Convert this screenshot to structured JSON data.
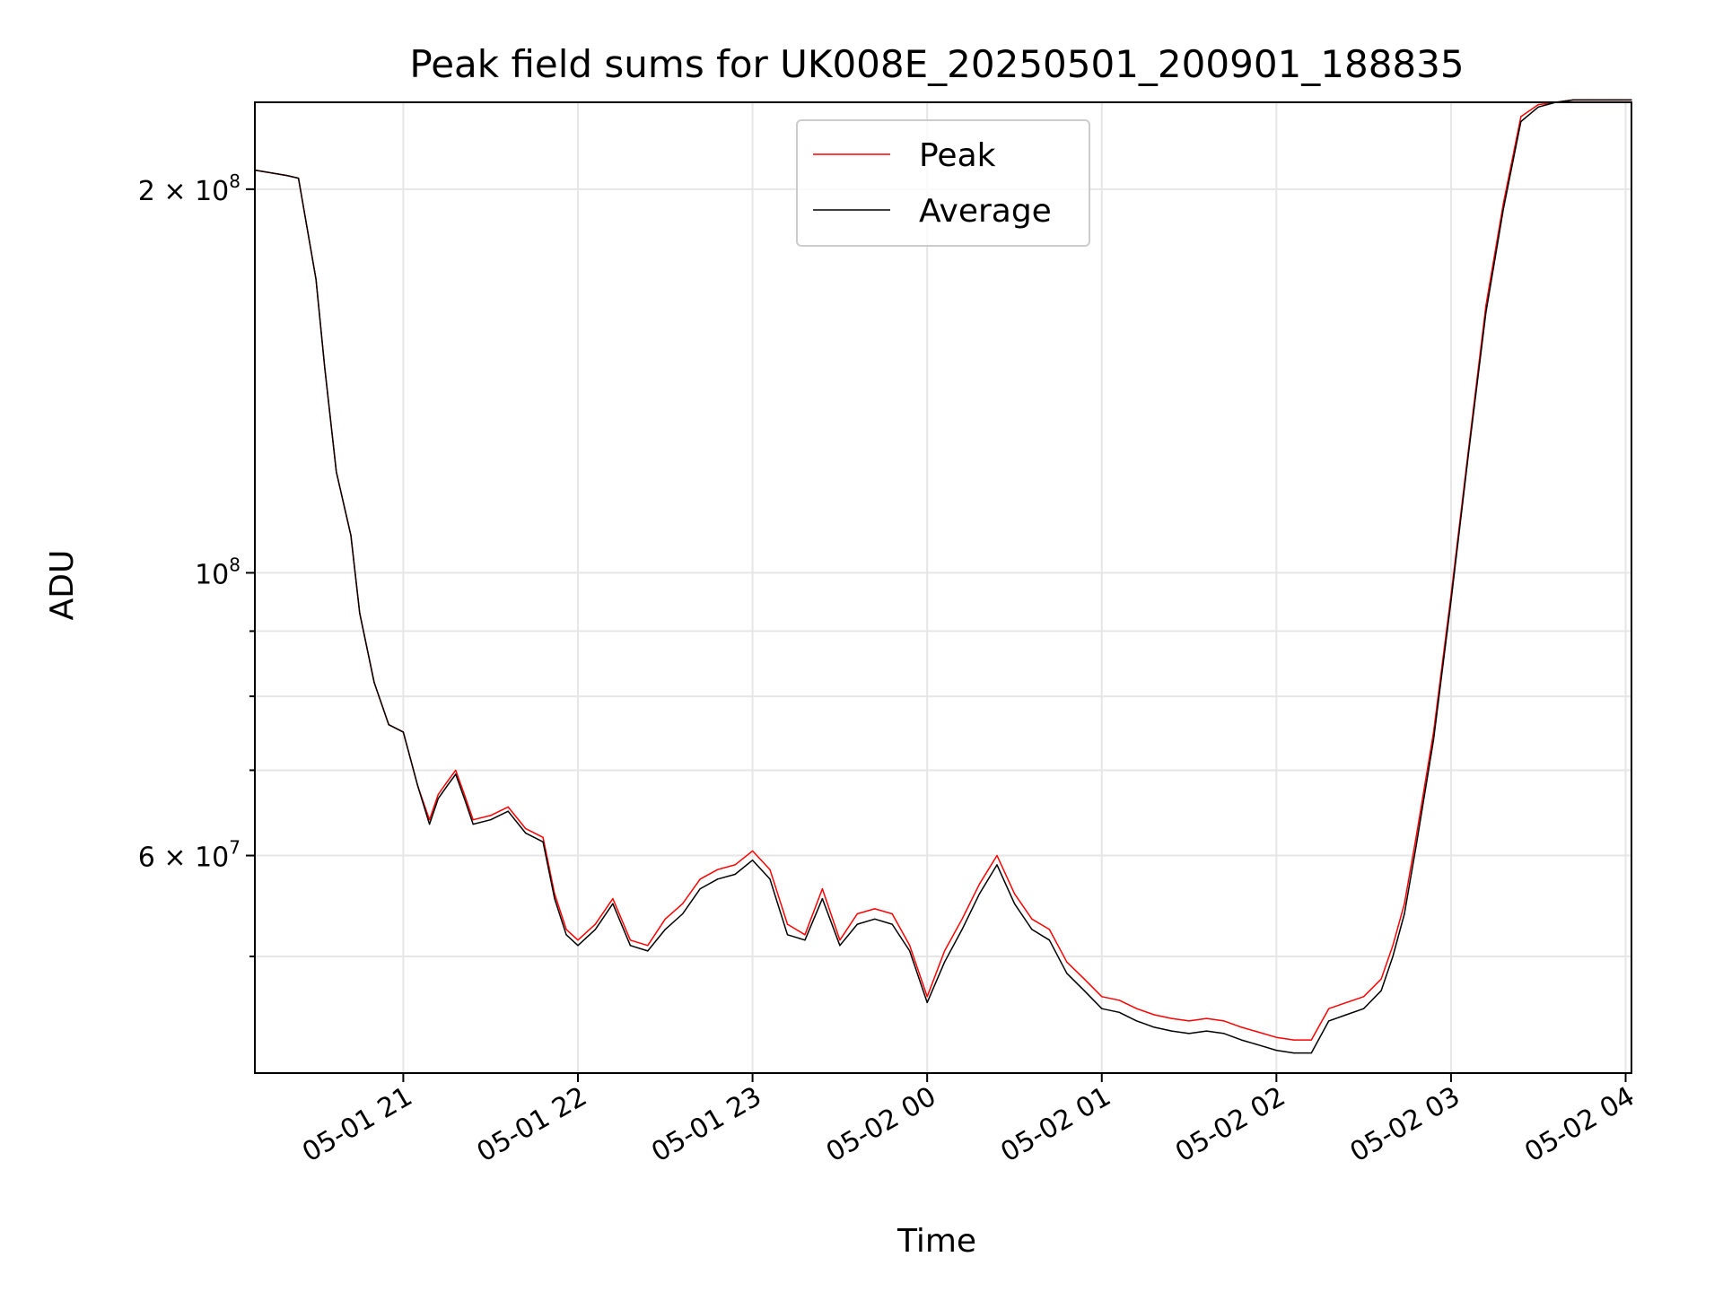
{
  "chart_data": {
    "type": "line",
    "title": "Peak field sums for UK008E_20250501_200901_188835",
    "xlabel": "Time",
    "ylabel": "ADU",
    "yscale": "log",
    "xlim": [
      "2025-05-01 20:09",
      "2025-05-02 04:02"
    ],
    "ylim": [
      40500000,
      234000000
    ],
    "grid": true,
    "legend_position": "top-center",
    "x_ticks": [
      {
        "time": "2025-05-01 21:00",
        "label": "05-01 21"
      },
      {
        "time": "2025-05-01 22:00",
        "label": "05-01 22"
      },
      {
        "time": "2025-05-01 23:00",
        "label": "05-01 23"
      },
      {
        "time": "2025-05-02 00:00",
        "label": "05-02 00"
      },
      {
        "time": "2025-05-02 01:00",
        "label": "05-02 01"
      },
      {
        "time": "2025-05-02 02:00",
        "label": "05-02 02"
      },
      {
        "time": "2025-05-02 03:00",
        "label": "05-02 03"
      },
      {
        "time": "2025-05-02 04:00",
        "label": "05-02 04"
      }
    ],
    "y_major_ticks": [
      {
        "value": 60000000,
        "base": "6 × 10",
        "exp": "7"
      },
      {
        "value": 100000000,
        "base": "10",
        "exp": "8"
      },
      {
        "value": 200000000,
        "base": "2 × 10",
        "exp": "8"
      }
    ],
    "y_minor_ticks": [
      50000000,
      70000000,
      80000000,
      90000000
    ],
    "series": [
      {
        "name": "Peak",
        "color": "#ff0000",
        "x": [
          "2025-05-01 20:09",
          "2025-05-01 20:20",
          "2025-05-01 20:24",
          "2025-05-01 20:30",
          "2025-05-01 20:33",
          "2025-05-01 20:37",
          "2025-05-01 20:42",
          "2025-05-01 20:45",
          "2025-05-01 20:50",
          "2025-05-01 20:55",
          "2025-05-01 21:00",
          "2025-05-01 21:05",
          "2025-05-01 21:09",
          "2025-05-01 21:12",
          "2025-05-01 21:15",
          "2025-05-01 21:18",
          "2025-05-01 21:21",
          "2025-05-01 21:24",
          "2025-05-01 21:30",
          "2025-05-01 21:36",
          "2025-05-01 21:42",
          "2025-05-01 21:48",
          "2025-05-01 21:52",
          "2025-05-01 21:56",
          "2025-05-01 22:00",
          "2025-05-01 22:06",
          "2025-05-01 22:12",
          "2025-05-01 22:18",
          "2025-05-01 22:24",
          "2025-05-01 22:30",
          "2025-05-01 22:36",
          "2025-05-01 22:42",
          "2025-05-01 22:48",
          "2025-05-01 22:54",
          "2025-05-01 23:00",
          "2025-05-01 23:06",
          "2025-05-01 23:12",
          "2025-05-01 23:18",
          "2025-05-01 23:24",
          "2025-05-01 23:30",
          "2025-05-01 23:36",
          "2025-05-01 23:42",
          "2025-05-01 23:48",
          "2025-05-01 23:54",
          "2025-05-02 00:00",
          "2025-05-02 00:06",
          "2025-05-02 00:12",
          "2025-05-02 00:18",
          "2025-05-02 00:24",
          "2025-05-02 00:30",
          "2025-05-02 00:36",
          "2025-05-02 00:42",
          "2025-05-02 00:48",
          "2025-05-02 00:54",
          "2025-05-02 01:00",
          "2025-05-02 01:06",
          "2025-05-02 01:12",
          "2025-05-02 01:18",
          "2025-05-02 01:24",
          "2025-05-02 01:30",
          "2025-05-02 01:36",
          "2025-05-02 01:42",
          "2025-05-02 01:48",
          "2025-05-02 01:54",
          "2025-05-02 02:00",
          "2025-05-02 02:06",
          "2025-05-02 02:12",
          "2025-05-02 02:18",
          "2025-05-02 02:24",
          "2025-05-02 02:30",
          "2025-05-02 02:36",
          "2025-05-02 02:40",
          "2025-05-02 02:44",
          "2025-05-02 02:48",
          "2025-05-02 02:54",
          "2025-05-02 03:00",
          "2025-05-02 03:06",
          "2025-05-02 03:12",
          "2025-05-02 03:18",
          "2025-05-02 03:24",
          "2025-05-02 03:30",
          "2025-05-02 03:36",
          "2025-05-02 03:42",
          "2025-05-02 03:48",
          "2025-05-02 03:54",
          "2025-05-02 03:58",
          "2025-05-02 04:02"
        ],
        "y": [
          207000000,
          205000000,
          204000000,
          170000000,
          145000000,
          120000000,
          107000000,
          93000000,
          82000000,
          76000000,
          75000000,
          68000000,
          64000000,
          67000000,
          68500000,
          70000000,
          67000000,
          64000000,
          64500000,
          65500000,
          63000000,
          62000000,
          56000000,
          52500000,
          51500000,
          53000000,
          55500000,
          51500000,
          51000000,
          53500000,
          55000000,
          57500000,
          58500000,
          59000000,
          60500000,
          58500000,
          53000000,
          52000000,
          56500000,
          51500000,
          54000000,
          54500000,
          54000000,
          51000000,
          46500000,
          50500000,
          53500000,
          57000000,
          60000000,
          56000000,
          53500000,
          52500000,
          49500000,
          48000000,
          46500000,
          46200000,
          45500000,
          45000000,
          44700000,
          44500000,
          44700000,
          44500000,
          44000000,
          43600000,
          43200000,
          43000000,
          43000000,
          45500000,
          46000000,
          46500000,
          48000000,
          51000000,
          55000000,
          62000000,
          75000000,
          96000000,
          125000000,
          162000000,
          195000000,
          228000000,
          233000000,
          234000000,
          235000000,
          235000000,
          235000000,
          235000000,
          235000000
        ]
      },
      {
        "name": "Average",
        "color": "#000000",
        "x": [
          "2025-05-01 20:09",
          "2025-05-01 20:20",
          "2025-05-01 20:24",
          "2025-05-01 20:30",
          "2025-05-01 20:33",
          "2025-05-01 20:37",
          "2025-05-01 20:42",
          "2025-05-01 20:45",
          "2025-05-01 20:50",
          "2025-05-01 20:55",
          "2025-05-01 21:00",
          "2025-05-01 21:05",
          "2025-05-01 21:09",
          "2025-05-01 21:12",
          "2025-05-01 21:15",
          "2025-05-01 21:18",
          "2025-05-01 21:21",
          "2025-05-01 21:24",
          "2025-05-01 21:30",
          "2025-05-01 21:36",
          "2025-05-01 21:42",
          "2025-05-01 21:48",
          "2025-05-01 21:52",
          "2025-05-01 21:56",
          "2025-05-01 22:00",
          "2025-05-01 22:06",
          "2025-05-01 22:12",
          "2025-05-01 22:18",
          "2025-05-01 22:24",
          "2025-05-01 22:30",
          "2025-05-01 22:36",
          "2025-05-01 22:42",
          "2025-05-01 22:48",
          "2025-05-01 22:54",
          "2025-05-01 23:00",
          "2025-05-01 23:06",
          "2025-05-01 23:12",
          "2025-05-01 23:18",
          "2025-05-01 23:24",
          "2025-05-01 23:30",
          "2025-05-01 23:36",
          "2025-05-01 23:42",
          "2025-05-01 23:48",
          "2025-05-01 23:54",
          "2025-05-02 00:00",
          "2025-05-02 00:06",
          "2025-05-02 00:12",
          "2025-05-02 00:18",
          "2025-05-02 00:24",
          "2025-05-02 00:30",
          "2025-05-02 00:36",
          "2025-05-02 00:42",
          "2025-05-02 00:48",
          "2025-05-02 00:54",
          "2025-05-02 01:00",
          "2025-05-02 01:06",
          "2025-05-02 01:12",
          "2025-05-02 01:18",
          "2025-05-02 01:24",
          "2025-05-02 01:30",
          "2025-05-02 01:36",
          "2025-05-02 01:42",
          "2025-05-02 01:48",
          "2025-05-02 01:54",
          "2025-05-02 02:00",
          "2025-05-02 02:06",
          "2025-05-02 02:12",
          "2025-05-02 02:18",
          "2025-05-02 02:24",
          "2025-05-02 02:30",
          "2025-05-02 02:36",
          "2025-05-02 02:40",
          "2025-05-02 02:44",
          "2025-05-02 02:48",
          "2025-05-02 02:54",
          "2025-05-02 03:00",
          "2025-05-02 03:06",
          "2025-05-02 03:12",
          "2025-05-02 03:18",
          "2025-05-02 03:24",
          "2025-05-02 03:30",
          "2025-05-02 03:36",
          "2025-05-02 03:42",
          "2025-05-02 03:48",
          "2025-05-02 03:54",
          "2025-05-02 03:58",
          "2025-05-02 04:02"
        ],
        "y": [
          207000000,
          205000000,
          204000000,
          170000000,
          145000000,
          120000000,
          107000000,
          93000000,
          82000000,
          76000000,
          75000000,
          68000000,
          63500000,
          66500000,
          68000000,
          69500000,
          66500000,
          63500000,
          64000000,
          65000000,
          62500000,
          61500000,
          55500000,
          52000000,
          51000000,
          52500000,
          55000000,
          51000000,
          50500000,
          52500000,
          54000000,
          56500000,
          57500000,
          58000000,
          59500000,
          57500000,
          52000000,
          51500000,
          55500000,
          51000000,
          53000000,
          53500000,
          53000000,
          50500000,
          46000000,
          49500000,
          52500000,
          56000000,
          59000000,
          55000000,
          52500000,
          51500000,
          48500000,
          47000000,
          45500000,
          45200000,
          44500000,
          44000000,
          43700000,
          43500000,
          43700000,
          43500000,
          43000000,
          42600000,
          42200000,
          42000000,
          42000000,
          44500000,
          45000000,
          45500000,
          47000000,
          50000000,
          54000000,
          61000000,
          74000000,
          95000000,
          124000000,
          160000000,
          193000000,
          226000000,
          232000000,
          234000000,
          235000000,
          235000000,
          235000000,
          235000000,
          235000000
        ]
      }
    ]
  }
}
